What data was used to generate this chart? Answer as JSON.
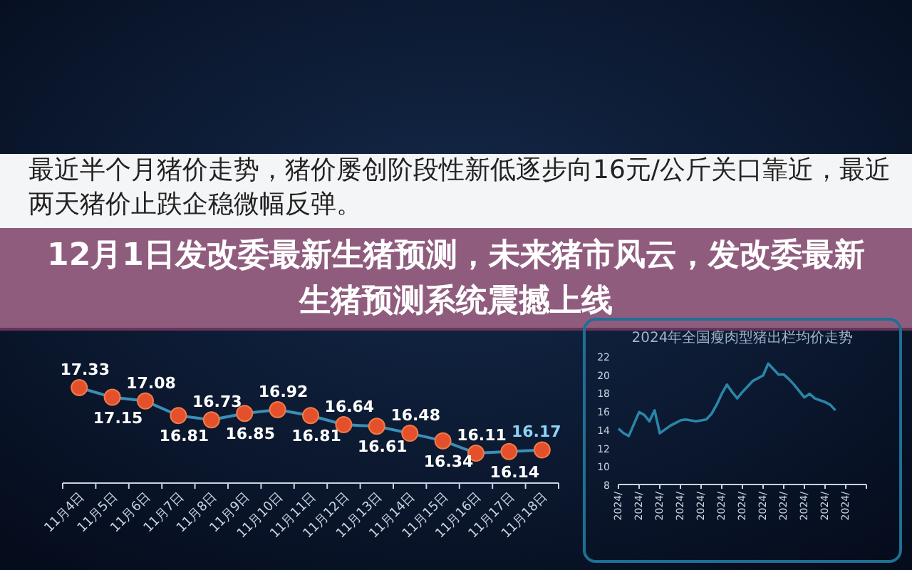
{
  "chart_data": [
    {
      "type": "line",
      "title": "12月1日发改委最新生猪预测，未来猪市风云，发改委最新生猪预测系统震撼上线",
      "subtitle": "最近半个月猪价走势，猪价屡创阶段性新低逐步向16元/公斤关口靠近，最近两天猪价止跌企稳微幅反弹。",
      "categories": [
        "11月4日",
        "11月5日",
        "11月6日",
        "11月7日",
        "11月8日",
        "11月9日",
        "11月10日",
        "11月11日",
        "11月12日",
        "11月13日",
        "11月14日",
        "11月15日",
        "11月16日",
        "11月17日",
        "11月18日"
      ],
      "series": [
        {
          "color": "#3a8fb7",
          "values": [
            17.33,
            17.15,
            17.08,
            16.81,
            16.73,
            16.85,
            16.92,
            16.81,
            16.64,
            16.61,
            16.48,
            16.34,
            16.11,
            16.14,
            16.17
          ]
        }
      ],
      "data_labels": true,
      "marker": "circle",
      "tick_labels": "x"
    },
    {
      "type": "line",
      "title": "2024年全国瘦肉型猪出栏均价走势",
      "categories": [
        "2024/",
        null,
        null,
        null,
        "2024/",
        null,
        null,
        null,
        "2024/",
        null,
        null,
        null,
        "2024/",
        null,
        null,
        null,
        "2024/",
        null,
        null,
        null,
        "2024/",
        null,
        null,
        null,
        "2024/",
        null,
        null,
        null,
        "2024/",
        null,
        null,
        null,
        "2024/",
        null,
        null,
        null,
        "2024/",
        null,
        null,
        null,
        "2024/",
        null,
        null,
        null,
        "2024/",
        null,
        null,
        null
      ],
      "series": [
        {
          "color": "#2a86a8",
          "values": [
            14.1,
            13.6,
            13.3,
            14.6,
            15.9,
            15.6,
            14.9,
            16.1,
            13.6,
            14.0,
            14.4,
            14.7,
            15.0,
            15.1,
            15.0,
            14.9,
            15.0,
            15.1,
            15.7,
            16.7,
            17.9,
            18.9,
            18.1,
            17.4,
            18.1,
            18.7,
            19.3,
            19.6,
            19.9,
            21.2,
            20.6,
            20.0,
            20.0,
            19.5,
            18.9,
            18.2,
            17.5,
            17.9,
            17.4,
            17.2,
            17.0,
            16.7,
            16.1,
            null,
            null,
            null,
            null,
            null
          ]
        }
      ],
      "ylim": [
        8,
        22
      ],
      "yticks": [
        8,
        10,
        12,
        14,
        16,
        18,
        20,
        22
      ],
      "marker": "none"
    }
  ]
}
